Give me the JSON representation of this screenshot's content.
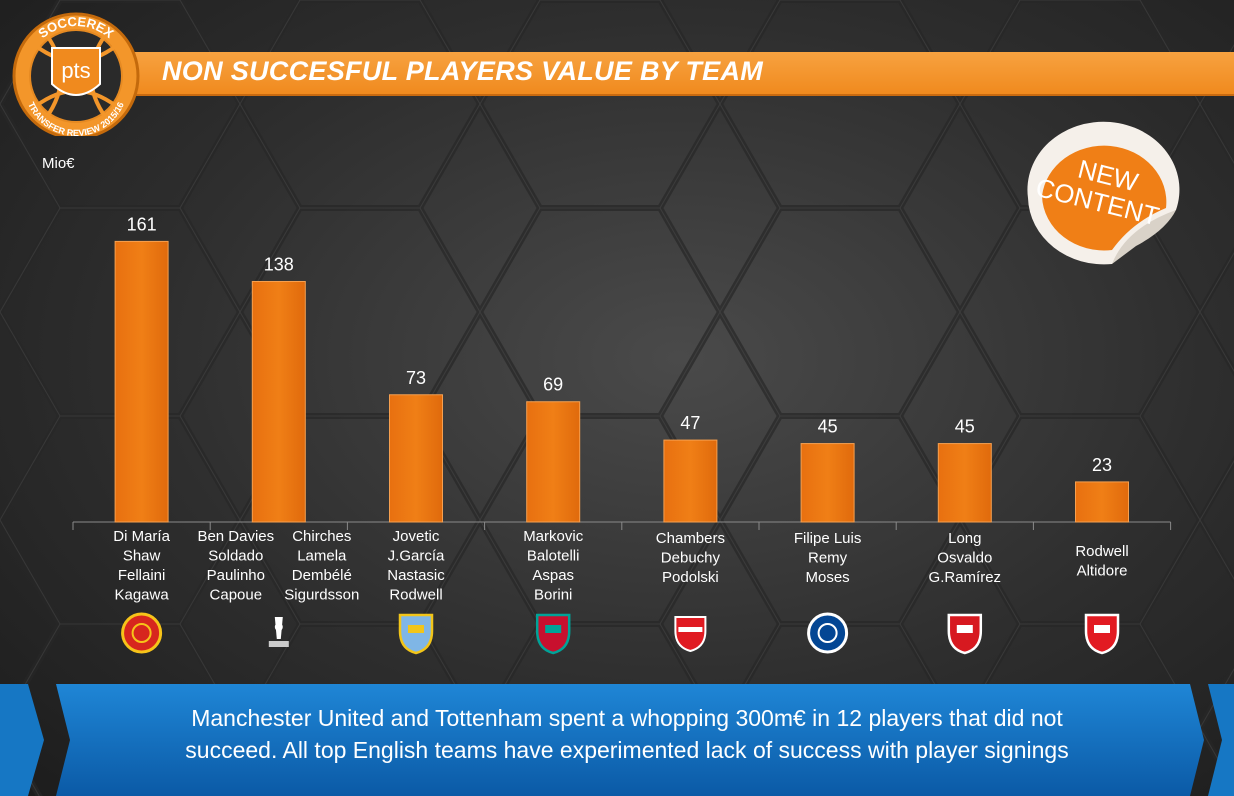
{
  "header": {
    "title": "NON SUCCESFUL PLAYERS VALUE BY TEAM",
    "logo_top_text": "SOCCEREX",
    "logo_mark": "pts",
    "logo_bottom_text": "TRANSFER REVIEW 2015/16"
  },
  "badge": {
    "line1": "NEW",
    "line2": "CONTENT"
  },
  "chart_data": {
    "type": "bar",
    "ylabel": "Mio€",
    "categories": [
      [
        "Di María",
        "Shaw",
        "Fellaini",
        "Kagawa"
      ],
      [
        "Ben Davies",
        "Soldado",
        "Paulinho",
        "Capoue",
        "Chirches",
        "Lamela",
        "Dembélé",
        "Sigurdsson"
      ],
      [
        "Jovetic",
        "J.García",
        "Nastasic",
        "Rodwell"
      ],
      [
        "Markovic",
        "Balotelli",
        "Aspas",
        "Borini"
      ],
      [
        "Chambers",
        "Debuchy",
        "Podolski"
      ],
      [
        "Filipe Luis",
        "Remy",
        "Moses"
      ],
      [
        "Long",
        "Osvaldo",
        "G.Ramírez"
      ],
      [
        "Rodwell",
        "Altidore"
      ]
    ],
    "values": [
      161,
      138,
      73,
      69,
      47,
      45,
      45,
      23
    ],
    "ylim": [
      0,
      175
    ],
    "grid": false,
    "legend": "none",
    "bar_color": "#f07f16",
    "crest_icons": [
      "man-utd-crest-icon",
      "tottenham-crest-icon",
      "man-city-crest-icon",
      "liverpool-crest-icon",
      "arsenal-crest-icon",
      "chelsea-crest-icon",
      "southampton-crest-icon",
      "sunderland-crest-icon"
    ]
  },
  "footer": {
    "line1": "Manchester United and Tottenham spent a whopping 300m€ in 12 players that did not",
    "line2": "succeed. All top English teams have experimented lack of success with player signings"
  }
}
